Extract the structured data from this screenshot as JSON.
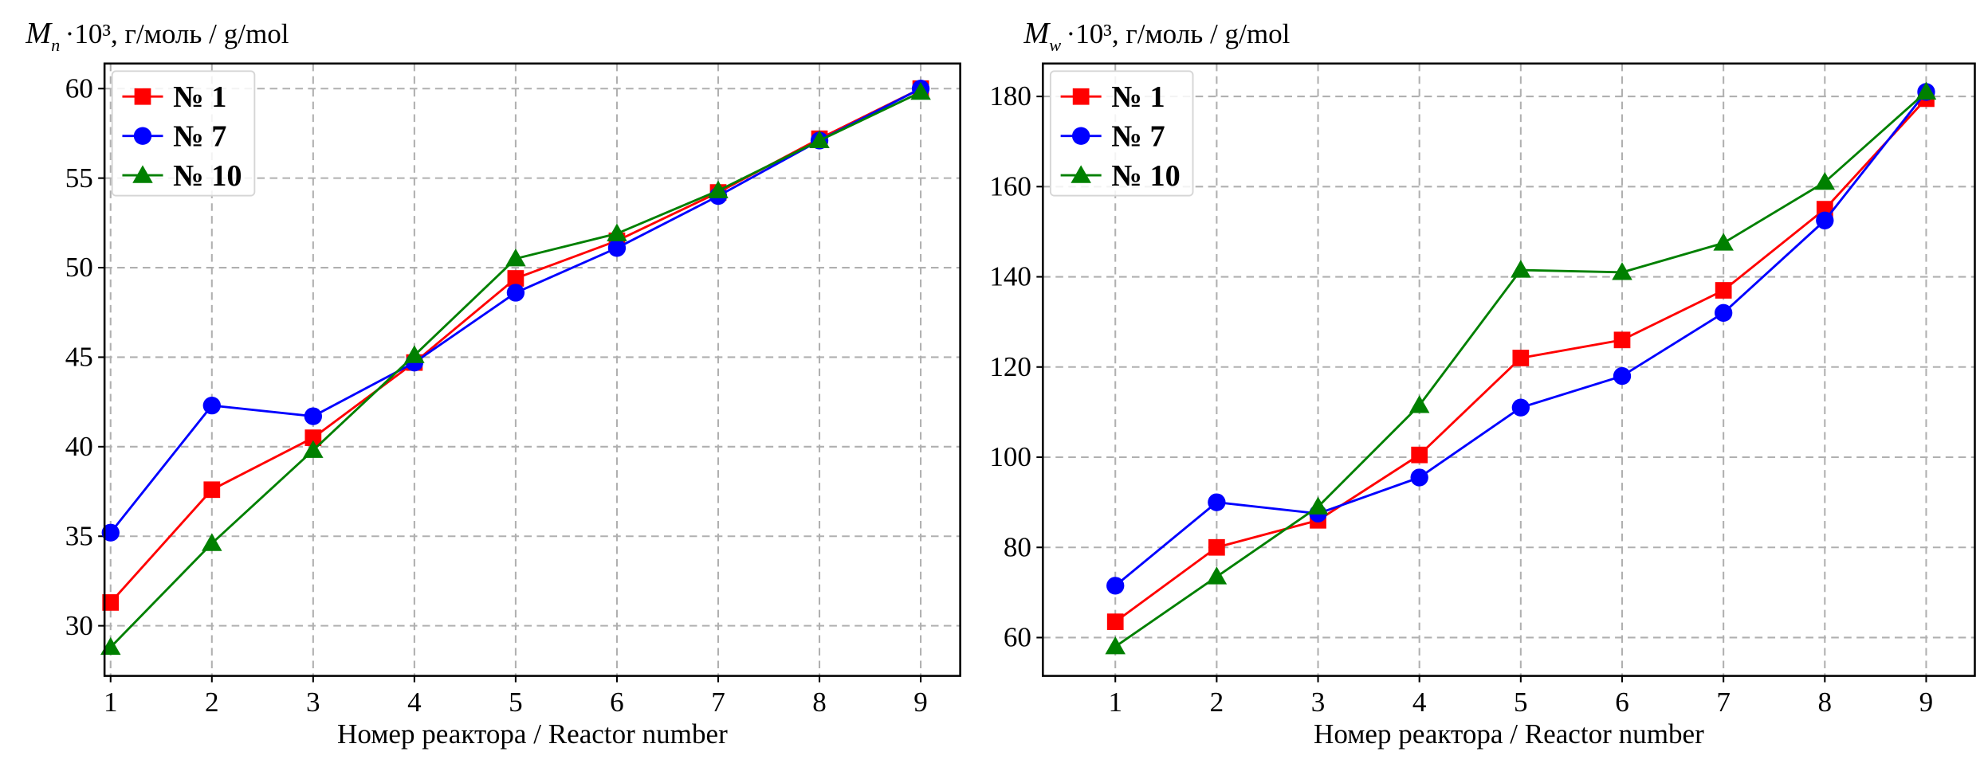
{
  "chart_data": [
    {
      "type": "line",
      "ylabel_symbol": "M",
      "ylabel_sub": "n",
      "ylabel_rest": "·10³, г/моль / g/mol",
      "xlabel": "Номер реактора / Reactor number",
      "x": [
        1,
        2,
        3,
        4,
        5,
        6,
        7,
        8,
        9
      ],
      "xticks": [
        "1",
        "2",
        "3",
        "4",
        "5",
        "6",
        "7",
        "8",
        "9"
      ],
      "yticks": [
        30,
        35,
        40,
        45,
        50,
        55,
        60
      ],
      "xlim": [
        0.94,
        9.39
      ],
      "ylim": [
        27.2,
        61.4
      ],
      "grid": true,
      "legend_position": "top-left",
      "series": [
        {
          "name": "№ 1",
          "color": "#ff0000",
          "marker": "square",
          "values": [
            31.3,
            37.6,
            40.5,
            44.7,
            49.4,
            51.5,
            54.2,
            57.2,
            60.0
          ]
        },
        {
          "name": "№ 7",
          "color": "#0000ff",
          "marker": "circle",
          "values": [
            35.2,
            42.3,
            41.7,
            44.7,
            48.6,
            51.1,
            54.0,
            57.1,
            60.0
          ]
        },
        {
          "name": "№ 10",
          "color": "#008000",
          "marker": "triangle",
          "values": [
            28.8,
            34.6,
            39.8,
            45.1,
            50.5,
            51.9,
            54.3,
            57.1,
            59.8
          ]
        }
      ]
    },
    {
      "type": "line",
      "ylabel_symbol": "M",
      "ylabel_sub": "w",
      "ylabel_rest": "·10³, г/моль / g/mol",
      "xlabel": "Номер реактора / Reactor number",
      "x": [
        1,
        2,
        3,
        4,
        5,
        6,
        7,
        8,
        9
      ],
      "xticks": [
        "1",
        "2",
        "3",
        "4",
        "5",
        "6",
        "7",
        "8",
        "9"
      ],
      "yticks": [
        60,
        80,
        100,
        120,
        140,
        160,
        180
      ],
      "xlim": [
        0.285,
        9.48
      ],
      "ylim": [
        51.5,
        187.3
      ],
      "grid": true,
      "legend_position": "top-left",
      "series": [
        {
          "name": "№ 1",
          "color": "#ff0000",
          "marker": "square",
          "values": [
            63.5,
            80,
            86,
            100.5,
            122,
            126,
            137,
            155,
            179.5
          ]
        },
        {
          "name": "№ 7",
          "color": "#0000ff",
          "marker": "circle",
          "values": [
            71.5,
            90,
            87.5,
            95.5,
            111,
            118,
            132,
            152.5,
            181
          ]
        },
        {
          "name": "№ 10",
          "color": "#008000",
          "marker": "triangle",
          "values": [
            58,
            73.5,
            89,
            111.5,
            141.5,
            141,
            147.5,
            161,
            181
          ]
        }
      ]
    }
  ]
}
